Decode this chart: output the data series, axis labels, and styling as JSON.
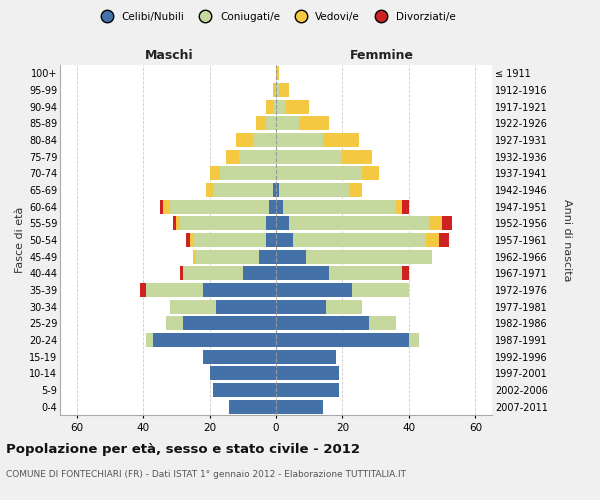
{
  "age_groups": [
    "0-4",
    "5-9",
    "10-14",
    "15-19",
    "20-24",
    "25-29",
    "30-34",
    "35-39",
    "40-44",
    "45-49",
    "50-54",
    "55-59",
    "60-64",
    "65-69",
    "70-74",
    "75-79",
    "80-84",
    "85-89",
    "90-94",
    "95-99",
    "100+"
  ],
  "birth_years": [
    "2007-2011",
    "2002-2006",
    "1997-2001",
    "1992-1996",
    "1987-1991",
    "1982-1986",
    "1977-1981",
    "1972-1976",
    "1967-1971",
    "1962-1966",
    "1957-1961",
    "1952-1956",
    "1947-1951",
    "1942-1946",
    "1937-1941",
    "1932-1936",
    "1927-1931",
    "1922-1926",
    "1917-1921",
    "1912-1916",
    "≤ 1911"
  ],
  "maschi": {
    "celibe": [
      14,
      19,
      20,
      22,
      37,
      28,
      18,
      22,
      10,
      5,
      3,
      3,
      2,
      1,
      0,
      0,
      0,
      0,
      0,
      0,
      0
    ],
    "coniugato": [
      0,
      0,
      0,
      0,
      2,
      5,
      14,
      17,
      18,
      19,
      22,
      26,
      30,
      18,
      17,
      11,
      7,
      3,
      1,
      0,
      0
    ],
    "vedovo": [
      0,
      0,
      0,
      0,
      0,
      0,
      0,
      0,
      0,
      1,
      1,
      1,
      2,
      2,
      3,
      4,
      5,
      3,
      2,
      1,
      0
    ],
    "divorziato": [
      0,
      0,
      0,
      0,
      0,
      0,
      0,
      2,
      1,
      0,
      1,
      1,
      1,
      0,
      0,
      0,
      0,
      0,
      0,
      0,
      0
    ]
  },
  "femmine": {
    "nubile": [
      14,
      19,
      19,
      18,
      40,
      28,
      15,
      23,
      16,
      9,
      5,
      4,
      2,
      1,
      0,
      0,
      0,
      0,
      0,
      0,
      0
    ],
    "coniugata": [
      0,
      0,
      0,
      0,
      3,
      8,
      11,
      17,
      22,
      38,
      40,
      42,
      34,
      21,
      26,
      20,
      14,
      7,
      3,
      1,
      0
    ],
    "vedova": [
      0,
      0,
      0,
      0,
      0,
      0,
      0,
      0,
      0,
      0,
      4,
      4,
      2,
      4,
      5,
      9,
      11,
      9,
      7,
      3,
      1
    ],
    "divorziata": [
      0,
      0,
      0,
      0,
      0,
      0,
      0,
      0,
      2,
      0,
      3,
      3,
      2,
      0,
      0,
      0,
      0,
      0,
      0,
      0,
      0
    ]
  },
  "colors": {
    "celibe": "#4472a8",
    "coniugato": "#c5d89e",
    "vedovo": "#f5c842",
    "divorziato": "#cc2222"
  },
  "xlim": 65,
  "xticks": [
    -60,
    -40,
    -20,
    0,
    20,
    40,
    60
  ],
  "title": "Popolazione per età, sesso e stato civile - 2012",
  "subtitle": "COMUNE DI FONTECHIARI (FR) - Dati ISTAT 1° gennaio 2012 - Elaborazione TUTTITALIA.IT",
  "ylabel_left": "Fasce di età",
  "ylabel_right": "Anni di nascita",
  "xlabel_maschi": "Maschi",
  "xlabel_femmine": "Femmine",
  "legend_labels": [
    "Celibi/Nubili",
    "Coniugati/e",
    "Vedovi/e",
    "Divorziati/e"
  ],
  "bg_color": "#f0f0f0",
  "plot_bg_color": "#ffffff"
}
